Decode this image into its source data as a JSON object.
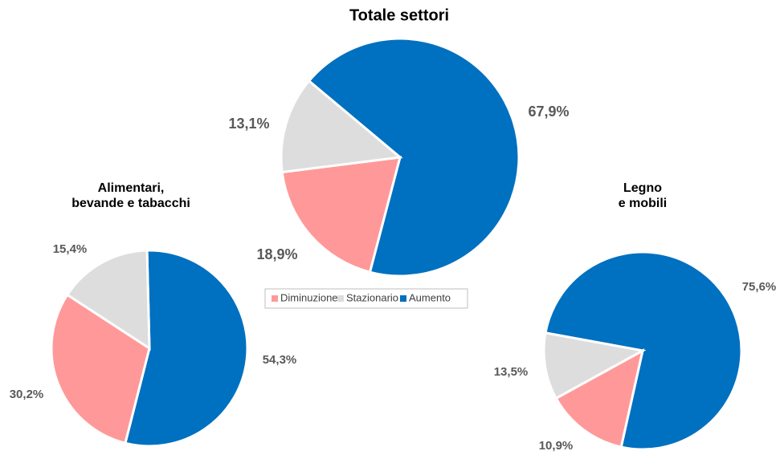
{
  "chart_data": [
    {
      "type": "pie",
      "title": [
        "Totale settori"
      ],
      "values": [
        18.9,
        13.1,
        67.9
      ],
      "value_labels": [
        "18,9%",
        "13,1%",
        "67,9%"
      ]
    },
    {
      "type": "pie",
      "title": [
        "Alimentari,",
        "bevande e tabacchi"
      ],
      "values": [
        30.2,
        15.4,
        54.3
      ],
      "value_labels": [
        "30,2%",
        "15,4%",
        "54,3%"
      ]
    },
    {
      "type": "pie",
      "title": [
        "Legno",
        "e mobili"
      ],
      "values": [
        13.5,
        10.9,
        75.6
      ],
      "value_labels": [
        "13,5%",
        "10,9%",
        "75,6%"
      ]
    }
  ],
  "legend": {
    "categories": [
      "Diminuzione",
      "Stazionario",
      "Aumento"
    ],
    "colors": [
      "#ff9999",
      "#dddddd",
      "#0070c0"
    ]
  }
}
